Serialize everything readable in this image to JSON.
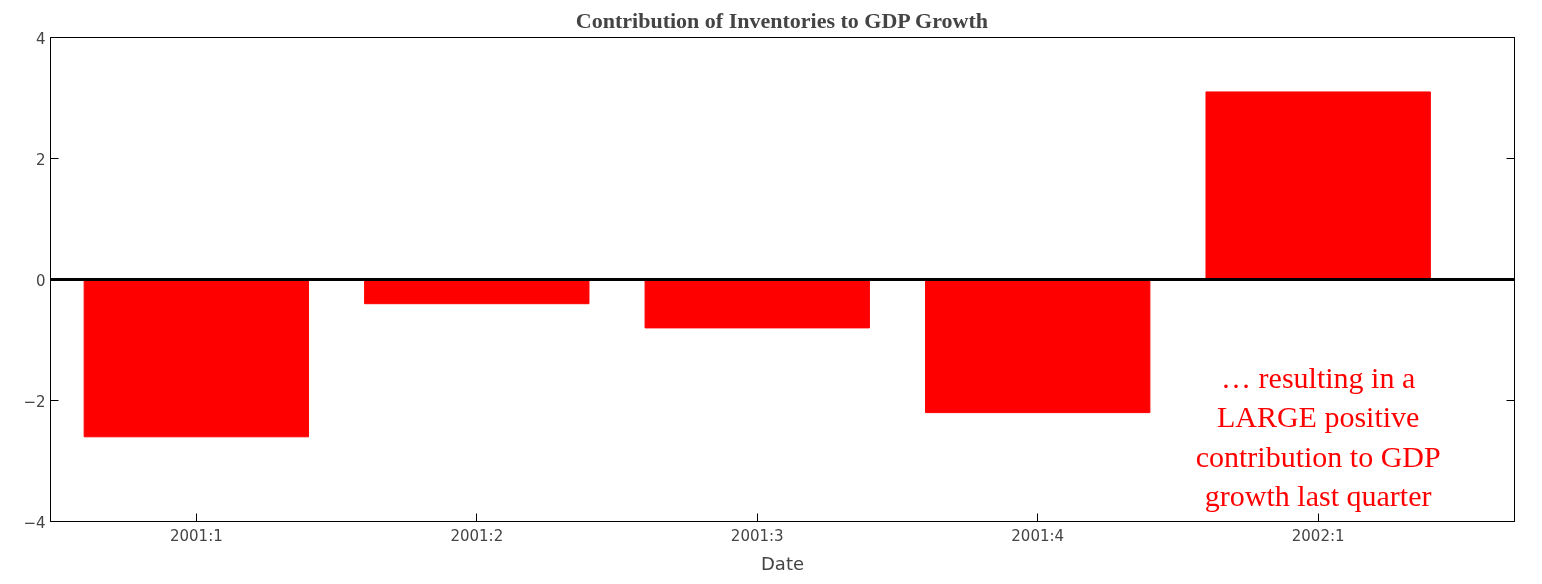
{
  "chart_data": {
    "type": "bar",
    "title": "Contribution of Inventories to GDP Growth",
    "xlabel": "Date",
    "categories": [
      "2001:1",
      "2001:2",
      "2001:3",
      "2001:4",
      "2002:1"
    ],
    "values": [
      -2.6,
      -0.4,
      -0.8,
      -2.2,
      3.1
    ],
    "color": "#ff0000",
    "ylim": [
      -4,
      4
    ],
    "yticks": [
      -4,
      -2,
      0,
      2,
      4
    ],
    "grid": false,
    "ref_lines": [
      {
        "axis": "y",
        "value": 0,
        "color": "#000000"
      }
    ],
    "annotations": [
      "… resulting in a LARGE positive contribution to GDP growth last quarter"
    ]
  }
}
